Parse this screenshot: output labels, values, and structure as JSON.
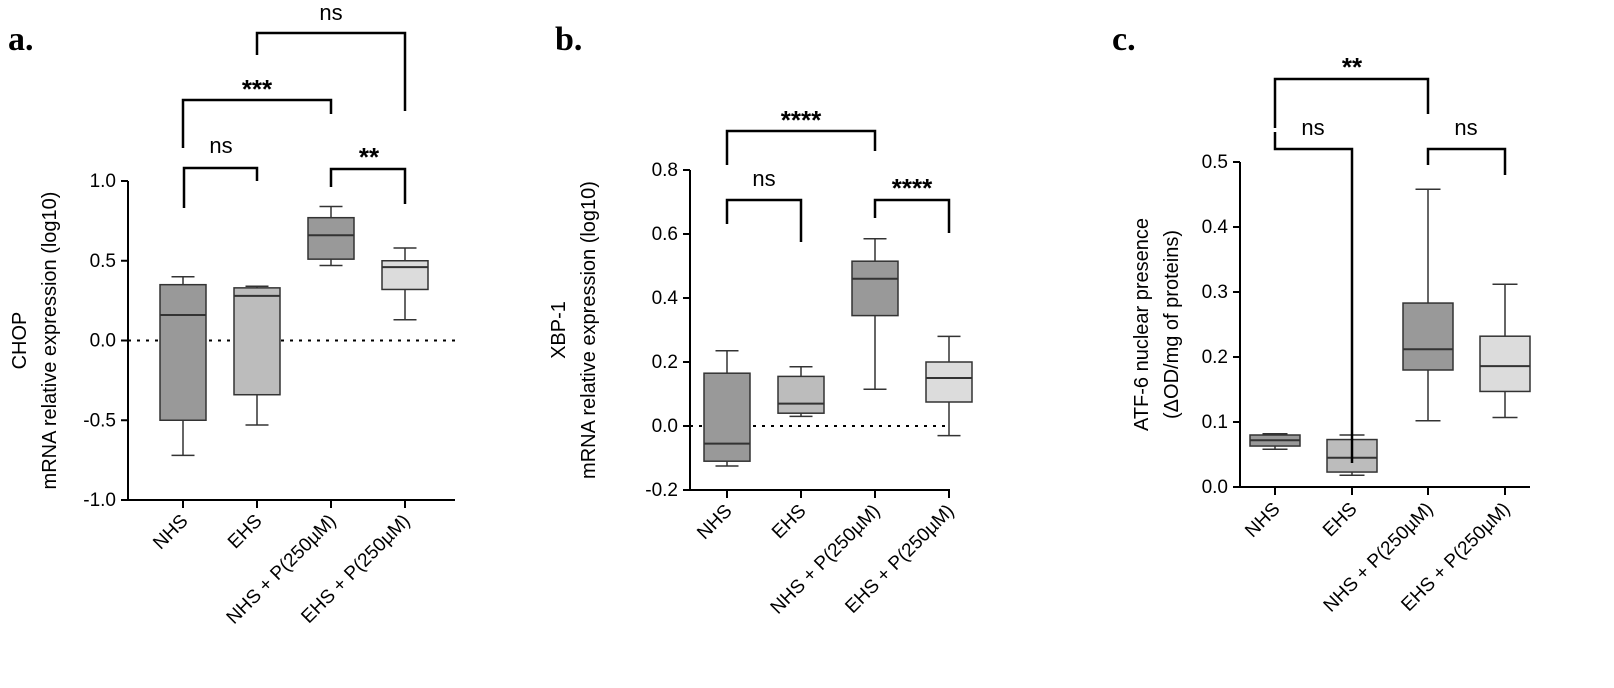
{
  "chart_data": [
    {
      "type": "box",
      "panel_label": "a.",
      "ylabel_line1": "CHOP",
      "ylabel_line2": "mRNA relative expression (log10)",
      "ylim": [
        -1.0,
        1.0
      ],
      "yticks": [
        -1.0,
        -0.5,
        0.0,
        0.5,
        1.0
      ],
      "ytick_labels": [
        "-1.0",
        "-0.5",
        "0.0",
        "0.5",
        "1.0"
      ],
      "reference_line": 0.0,
      "categories": [
        "NHS",
        "EHS",
        "NHS + P(250µM)",
        "EHS + P(250µM)"
      ],
      "boxes": [
        {
          "min": -0.72,
          "q1": -0.5,
          "median": 0.16,
          "q3": 0.35,
          "max": 0.4,
          "color": "#999999"
        },
        {
          "min": -0.53,
          "q1": -0.34,
          "median": 0.28,
          "q3": 0.33,
          "max": 0.34,
          "color": "#bcbcbc"
        },
        {
          "min": 0.47,
          "q1": 0.51,
          "median": 0.66,
          "q3": 0.77,
          "max": 0.84,
          "color": "#999999"
        },
        {
          "min": 0.13,
          "q1": 0.32,
          "median": 0.46,
          "q3": 0.5,
          "max": 0.58,
          "color": "#dcdcdc"
        }
      ],
      "comparisons": [
        {
          "from": 0,
          "to": 1,
          "label": "ns",
          "bold": false
        },
        {
          "from": 2,
          "to": 3,
          "label": "**",
          "bold": true
        },
        {
          "from": 0,
          "to": 2,
          "label": "***",
          "bold": true
        },
        {
          "from": 1,
          "to": 3,
          "label": "ns",
          "bold": false
        }
      ]
    },
    {
      "type": "box",
      "panel_label": "b.",
      "ylabel_line1": "XBP-1",
      "ylabel_line2": "mRNA relative expression (log10)",
      "ylim": [
        -0.2,
        0.8
      ],
      "yticks": [
        -0.2,
        0.0,
        0.2,
        0.4,
        0.6,
        0.8
      ],
      "ytick_labels": [
        "-0.2",
        "0.0",
        "0.2",
        "0.4",
        "0.6",
        "0.8"
      ],
      "reference_line": 0.0,
      "categories": [
        "NHS",
        "EHS",
        "NHS + P(250µM)",
        "EHS + P(250µM)"
      ],
      "boxes": [
        {
          "min": -0.125,
          "q1": -0.11,
          "median": -0.055,
          "q3": 0.165,
          "max": 0.235,
          "color": "#999999"
        },
        {
          "min": 0.03,
          "q1": 0.04,
          "median": 0.07,
          "q3": 0.155,
          "max": 0.185,
          "color": "#bcbcbc"
        },
        {
          "min": 0.115,
          "q1": 0.345,
          "median": 0.46,
          "q3": 0.515,
          "max": 0.585,
          "color": "#999999"
        },
        {
          "min": -0.03,
          "q1": 0.075,
          "median": 0.15,
          "q3": 0.2,
          "max": 0.28,
          "color": "#dcdcdc"
        }
      ],
      "comparisons": [
        {
          "from": 0,
          "to": 1,
          "label": "ns",
          "bold": false
        },
        {
          "from": 2,
          "to": 3,
          "label": "****",
          "bold": true
        },
        {
          "from": 0,
          "to": 2,
          "label": "****",
          "bold": true
        }
      ]
    },
    {
      "type": "box",
      "panel_label": "c.",
      "ylabel_line1": "ATF-6 nuclear presence",
      "ylabel_line2": "(ΔOD/mg of proteins)",
      "ylim": [
        0.0,
        0.5
      ],
      "yticks": [
        0.0,
        0.1,
        0.2,
        0.3,
        0.4,
        0.5
      ],
      "ytick_labels": [
        "0.0",
        "0.1",
        "0.2",
        "0.3",
        "0.4",
        "0.5"
      ],
      "reference_line": null,
      "categories": [
        "NHS",
        "EHS",
        "NHS + P(250µM)",
        "EHS + P(250µM)"
      ],
      "boxes": [
        {
          "min": 0.058,
          "q1": 0.063,
          "median": 0.072,
          "q3": 0.08,
          "max": 0.082,
          "color": "#999999"
        },
        {
          "min": 0.018,
          "q1": 0.023,
          "median": 0.045,
          "q3": 0.073,
          "max": 0.08,
          "color": "#bcbcbc"
        },
        {
          "min": 0.102,
          "q1": 0.18,
          "median": 0.212,
          "q3": 0.283,
          "max": 0.458,
          "color": "#999999"
        },
        {
          "min": 0.107,
          "q1": 0.147,
          "median": 0.186,
          "q3": 0.232,
          "max": 0.312,
          "color": "#dcdcdc"
        }
      ],
      "comparisons": [
        {
          "from": 0,
          "to": 1,
          "label": "ns",
          "bold": false
        },
        {
          "from": 2,
          "to": 3,
          "label": "ns",
          "bold": false
        },
        {
          "from": 0,
          "to": 2,
          "label": "**",
          "bold": true
        }
      ]
    }
  ]
}
